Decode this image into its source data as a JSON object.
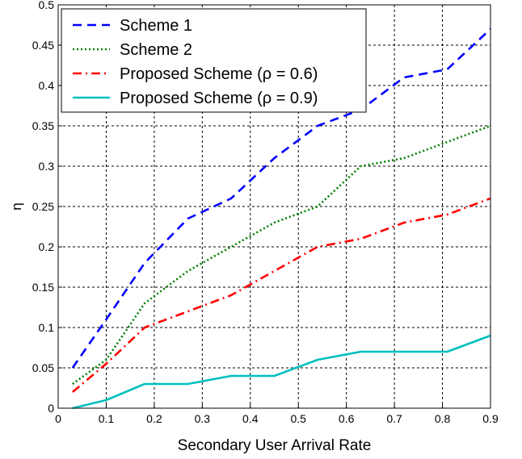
{
  "chart_data": {
    "type": "line",
    "title": "",
    "xlabel": "Secondary User Arrival Rate",
    "ylabel": "η",
    "xlim": [
      0,
      0.9
    ],
    "ylim": [
      0,
      0.5
    ],
    "xticks": [
      0,
      0.1,
      0.2,
      0.3,
      0.4,
      0.5,
      0.6,
      0.7,
      0.8,
      0.9
    ],
    "xtick_labels": [
      "0",
      "0.1",
      "0.2",
      "0.3",
      "0.4",
      "0.5",
      "0.6",
      "0.7",
      "0.8",
      "0.9"
    ],
    "yticks": [
      0,
      0.05,
      0.1,
      0.15,
      0.2,
      0.25,
      0.3,
      0.35,
      0.4,
      0.45,
      0.5
    ],
    "ytick_labels": [
      "0",
      "0.05",
      "0.1",
      "0.15",
      "0.2",
      "0.25",
      "0.3",
      "0.35",
      "0.4",
      "0.45",
      "0.5"
    ],
    "grid": true,
    "legend_position": "top-left",
    "series": [
      {
        "name": "Scheme 1",
        "color": "#0000ff",
        "line_style": "dashed",
        "x": [
          0.03,
          0.1,
          0.18,
          0.27,
          0.36,
          0.45,
          0.54,
          0.63,
          0.72,
          0.81,
          0.9
        ],
        "y": [
          0.05,
          0.11,
          0.18,
          0.235,
          0.26,
          0.31,
          0.35,
          0.37,
          0.41,
          0.42,
          0.47
        ]
      },
      {
        "name": "Scheme 2",
        "color": "#008000",
        "line_style": "dotted",
        "x": [
          0.03,
          0.1,
          0.18,
          0.27,
          0.36,
          0.45,
          0.54,
          0.63,
          0.72,
          0.81,
          0.9
        ],
        "y": [
          0.03,
          0.06,
          0.13,
          0.17,
          0.2,
          0.23,
          0.25,
          0.3,
          0.31,
          0.33,
          0.35
        ]
      },
      {
        "name": "Proposed Scheme (ρ = 0.6)",
        "color": "#ff0000",
        "line_style": "dashdot",
        "x": [
          0.03,
          0.1,
          0.18,
          0.27,
          0.36,
          0.45,
          0.54,
          0.63,
          0.72,
          0.81,
          0.9
        ],
        "y": [
          0.02,
          0.055,
          0.1,
          0.12,
          0.14,
          0.17,
          0.2,
          0.21,
          0.23,
          0.24,
          0.26
        ]
      },
      {
        "name": "Proposed Scheme (ρ = 0.9)",
        "color": "#00bfbf",
        "line_style": "solid",
        "x": [
          0.03,
          0.1,
          0.18,
          0.27,
          0.36,
          0.45,
          0.54,
          0.63,
          0.72,
          0.81,
          0.9
        ],
        "y": [
          0.0,
          0.01,
          0.03,
          0.03,
          0.04,
          0.04,
          0.06,
          0.07,
          0.07,
          0.07,
          0.09
        ]
      }
    ]
  }
}
